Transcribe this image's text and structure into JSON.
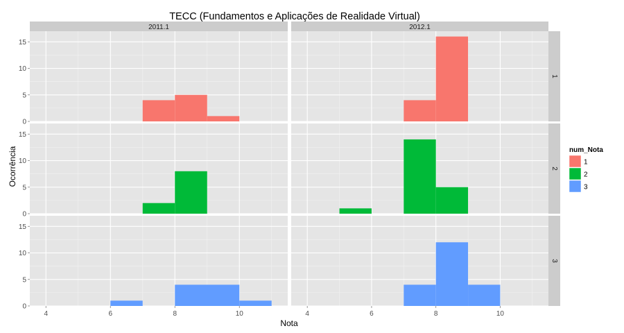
{
  "chart_data": {
    "type": "histogram-facet-grid",
    "title": "TECC (Fundamentos e Aplicações de Realidade Virtual)",
    "xlabel": "Nota",
    "ylabel": "Ocorrência",
    "xlim": [
      3.5,
      11.5
    ],
    "ylim": [
      0,
      17
    ],
    "x_ticks": [
      4,
      6,
      8,
      10
    ],
    "y_ticks": [
      0,
      5,
      10,
      15
    ],
    "bin_width": 1,
    "columns": [
      "2011.1",
      "2012.1"
    ],
    "rows": [
      "1",
      "2",
      "3"
    ],
    "legend": {
      "title": "num_Nota",
      "entries": [
        {
          "label": "1",
          "color": "#F8766D"
        },
        {
          "label": "2",
          "color": "#00BA38"
        },
        {
          "label": "3",
          "color": "#619CFF"
        }
      ]
    },
    "panels": [
      {
        "row": "1",
        "col": "2011.1",
        "bins": [
          {
            "x0": 7,
            "x1": 8,
            "count": 4
          },
          {
            "x0": 8,
            "x1": 9,
            "count": 5
          },
          {
            "x0": 9,
            "x1": 10,
            "count": 1
          }
        ]
      },
      {
        "row": "1",
        "col": "2012.1",
        "bins": [
          {
            "x0": 7,
            "x1": 8,
            "count": 4
          },
          {
            "x0": 8,
            "x1": 9,
            "count": 16
          }
        ]
      },
      {
        "row": "2",
        "col": "2011.1",
        "bins": [
          {
            "x0": 7,
            "x1": 8,
            "count": 2
          },
          {
            "x0": 8,
            "x1": 9,
            "count": 8
          }
        ]
      },
      {
        "row": "2",
        "col": "2012.1",
        "bins": [
          {
            "x0": 5,
            "x1": 6,
            "count": 1
          },
          {
            "x0": 7,
            "x1": 8,
            "count": 14
          },
          {
            "x0": 8,
            "x1": 9,
            "count": 5
          }
        ]
      },
      {
        "row": "3",
        "col": "2011.1",
        "bins": [
          {
            "x0": 6,
            "x1": 7,
            "count": 1
          },
          {
            "x0": 8,
            "x1": 10,
            "count": 4
          },
          {
            "x0": 10,
            "x1": 11,
            "count": 1
          }
        ]
      },
      {
        "row": "3",
        "col": "2012.1",
        "bins": [
          {
            "x0": 7,
            "x1": 8,
            "count": 4
          },
          {
            "x0": 8,
            "x1": 9,
            "count": 12
          },
          {
            "x0": 9,
            "x1": 10,
            "count": 4
          }
        ]
      }
    ]
  }
}
